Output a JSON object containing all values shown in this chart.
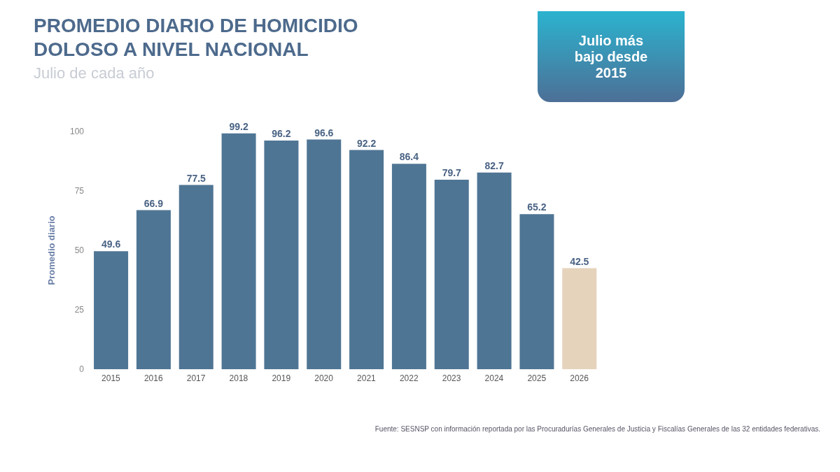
{
  "chart_data": {
    "type": "bar",
    "title": "PROMEDIO DIARIO DE HOMICIDIO DOLOSO A NIVEL NACIONAL",
    "subtitle": "Julio de cada año",
    "ylabel": "Promedio diario",
    "categories": [
      "2015",
      "2016",
      "2017",
      "2018",
      "2019",
      "2020",
      "2021",
      "2022",
      "2023",
      "2024",
      "2025",
      "2026"
    ],
    "values": [
      49.6,
      66.9,
      77.5,
      99.2,
      96.2,
      96.6,
      92.2,
      86.4,
      79.7,
      82.7,
      65.2,
      42.5
    ],
    "colors": [
      "#4f7594",
      "#4f7594",
      "#4f7594",
      "#4f7594",
      "#4f7594",
      "#4f7594",
      "#4f7594",
      "#4f7594",
      "#4f7594",
      "#4f7594",
      "#4f7594",
      "#e6d3bc"
    ],
    "ylim": [
      0,
      100
    ],
    "yticks": [
      0,
      25,
      50,
      75,
      100
    ],
    "grid": false,
    "legend": false,
    "data_labels": true,
    "annotations": [
      "Julio más bajo desde 2015",
      "Fuente: SESNSP con información reportada por las Procuradurías Generales de Justicia y Fiscalías Generales de las 32 entidades federativas."
    ]
  }
}
